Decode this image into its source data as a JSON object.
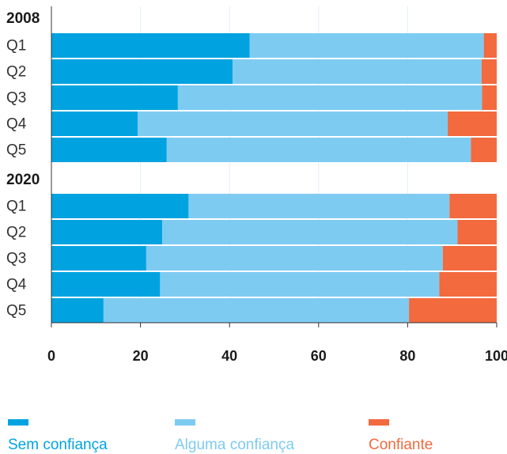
{
  "chart_data": {
    "type": "bar",
    "orientation": "horizontal",
    "stacked": true,
    "groups": [
      {
        "label": "2008",
        "categories": [
          "Q1",
          "Q2",
          "Q3",
          "Q4",
          "Q5"
        ]
      },
      {
        "label": "2020",
        "categories": [
          "Q1",
          "Q2",
          "Q3",
          "Q4",
          "Q5"
        ]
      }
    ],
    "series": [
      {
        "name": "Sem confiança",
        "color": "#00a3e0",
        "values": [
          44.5,
          40.7,
          28.4,
          19.4,
          25.9,
          30.8,
          24.9,
          21.3,
          24.4,
          11.7
        ]
      },
      {
        "name": "Alguma confiança",
        "color": "#7ecbf2",
        "values": [
          52.6,
          55.9,
          68.3,
          69.6,
          68.3,
          58.6,
          66.3,
          66.6,
          62.7,
          68.6
        ]
      },
      {
        "name": "Confiante",
        "color": "#f26a3d",
        "values": [
          2.9,
          3.4,
          3.3,
          11.0,
          5.8,
          10.6,
          8.8,
          12.1,
          12.9,
          19.7
        ]
      }
    ],
    "xlim": [
      0,
      100
    ],
    "xticks": [
      "0",
      "20",
      "40",
      "60",
      "80",
      "100"
    ],
    "grid": true,
    "legend_position": "bottom"
  },
  "legend": {
    "items": [
      {
        "label": "Sem confiança",
        "color": "#00a3e0"
      },
      {
        "label": "Alguma confiança",
        "color": "#7ecbf2"
      },
      {
        "label": "Confiante",
        "color": "#f26a3d"
      }
    ]
  }
}
